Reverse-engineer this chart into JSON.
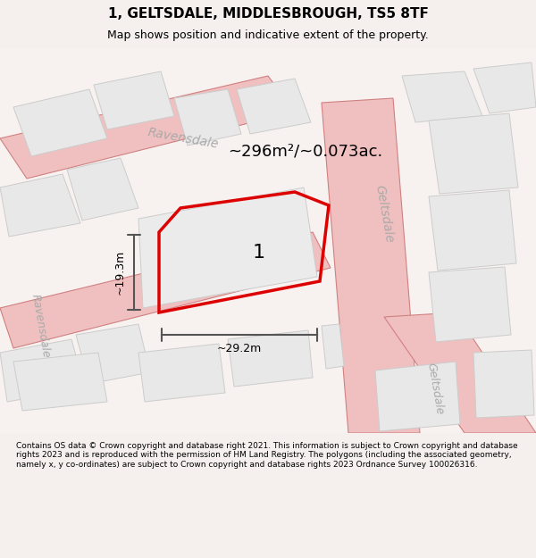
{
  "title": "1, GELTSDALE, MIDDLESBROUGH, TS5 8TF",
  "subtitle": "Map shows position and indicative extent of the property.",
  "footer": "Contains OS data © Crown copyright and database right 2021. This information is subject to Crown copyright and database rights 2023 and is reproduced with the permission of HM Land Registry. The polygons (including the associated geometry, namely x, y co-ordinates) are subject to Crown copyright and database rights 2023 Ordnance Survey 100026316.",
  "bg_color": "#f5f0ee",
  "map_bg": "#f5f0ee",
  "map_area_color": "#ffffff",
  "block_color": "#e8e8e8",
  "block_edge_color": "#cccccc",
  "road_color": "#f0b8b8",
  "road_edge_color": "#e08080",
  "highlight_color": "#ff1111",
  "highlight_fill": "none",
  "dim_line_color": "#555555",
  "area_label": "~296m²/~0.073ac.",
  "width_label": "~29.2m",
  "height_label": "~19.3m",
  "plot_number": "1",
  "street_label_ravensd_top": "Ravensdale",
  "street_label_ravensd_left": "Ravensdale",
  "street_label_gelts_right": "Geltsdale",
  "street_label_gelts_bottom": "Geltsdale",
  "map_xlim": [
    0,
    1
  ],
  "map_ylim": [
    0,
    1
  ]
}
